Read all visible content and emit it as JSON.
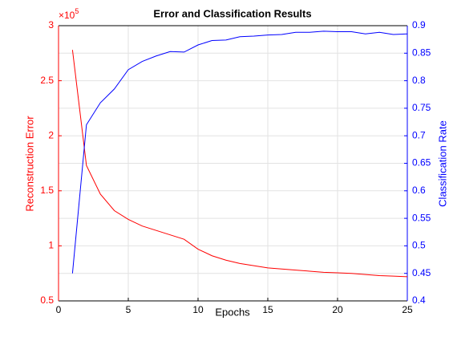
{
  "chart_data": {
    "type": "line",
    "title": "Error and Classification Results",
    "xlabel": "Epochs",
    "ylabel": "Reconstruction Error",
    "y2label": "Classification Rate",
    "y_multiplier": {
      "base": "×10",
      "exponent": 5
    },
    "x": [
      1,
      2,
      3,
      4,
      5,
      6,
      7,
      8,
      9,
      10,
      11,
      12,
      13,
      14,
      15,
      16,
      17,
      18,
      19,
      20,
      21,
      22,
      23,
      24,
      25
    ],
    "series": [
      {
        "name": "Reconstruction Error",
        "color": "#ff0000",
        "axis": "y",
        "values": [
          2.78,
          1.73,
          1.47,
          1.32,
          1.24,
          1.18,
          1.14,
          1.1,
          1.06,
          0.97,
          0.91,
          0.87,
          0.84,
          0.82,
          0.8,
          0.79,
          0.78,
          0.77,
          0.76,
          0.755,
          0.75,
          0.74,
          0.73,
          0.725,
          0.72
        ]
      },
      {
        "name": "Classification Rate",
        "color": "#0000ff",
        "axis": "y2",
        "values": [
          0.45,
          0.72,
          0.76,
          0.785,
          0.82,
          0.835,
          0.845,
          0.853,
          0.852,
          0.865,
          0.873,
          0.874,
          0.88,
          0.881,
          0.883,
          0.884,
          0.888,
          0.888,
          0.89,
          0.889,
          0.889,
          0.885,
          0.888,
          0.884,
          0.885
        ]
      }
    ],
    "xlim": [
      0,
      25
    ],
    "xticks": [
      0,
      5,
      10,
      15,
      20,
      25
    ],
    "ylim": [
      0.5,
      3
    ],
    "yticks": [
      0.5,
      1,
      1.5,
      2,
      2.5,
      3
    ],
    "y2lim": [
      0.4,
      0.9
    ],
    "y2ticks": [
      0.4,
      0.45,
      0.5,
      0.55,
      0.6,
      0.65,
      0.7,
      0.75,
      0.8,
      0.85,
      0.9
    ],
    "grid": true
  }
}
